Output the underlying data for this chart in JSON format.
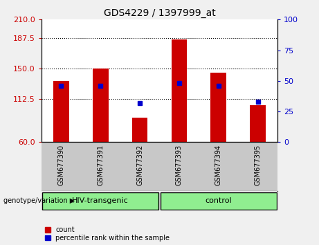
{
  "title": "GDS4229 / 1397999_at",
  "samples": [
    "GSM677390",
    "GSM677391",
    "GSM677392",
    "GSM677393",
    "GSM677394",
    "GSM677395"
  ],
  "count_values": [
    135,
    150,
    90,
    186,
    145,
    105
  ],
  "percentile_values": [
    46,
    46,
    32,
    48,
    46,
    33
  ],
  "ylim_left": [
    60,
    210
  ],
  "yticks_left": [
    60,
    112.5,
    150,
    187.5,
    210
  ],
  "ylim_right": [
    0,
    100
  ],
  "yticks_right": [
    0,
    25,
    50,
    75,
    100
  ],
  "bar_color": "#cc0000",
  "dot_color": "#0000cc",
  "sample_bg_color": "#c8c8c8",
  "group_color": "#90ee90",
  "plot_bg": "#ffffff",
  "fig_bg": "#f0f0f0",
  "ylabel_left_color": "#cc0000",
  "ylabel_right_color": "#0000cc",
  "legend_count_label": "count",
  "legend_pct_label": "percentile rank within the sample",
  "group_label": "genotype/variation",
  "group1_label": "HIV-transgenic",
  "group2_label": "control",
  "grid_ticks": [
    112.5,
    150,
    187.5
  ],
  "bar_width": 0.4
}
